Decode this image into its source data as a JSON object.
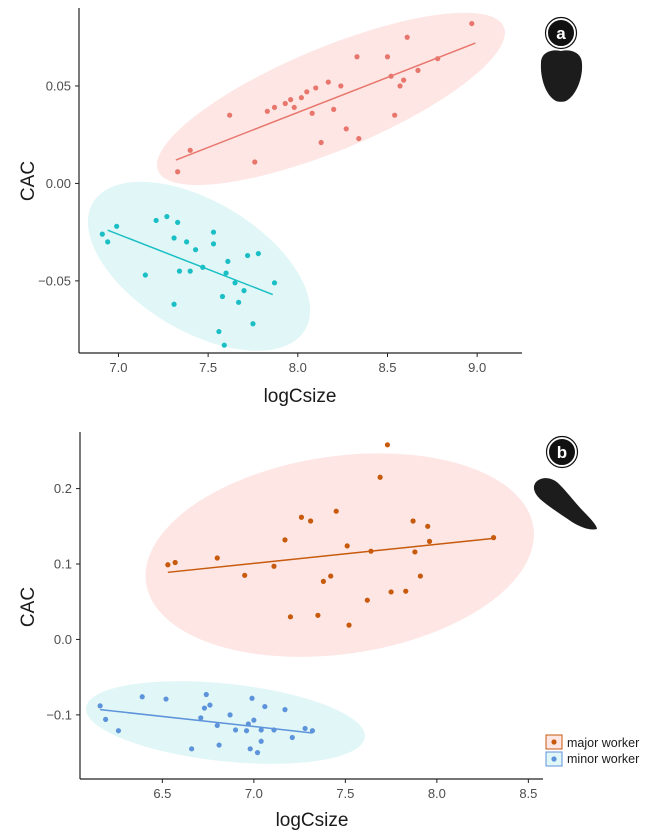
{
  "chart_data": [
    {
      "type": "scatter",
      "panel_label": "a",
      "xlabel": "logCsize",
      "ylabel": "CAC",
      "xlim": [
        6.78,
        9.25
      ],
      "ylim": [
        -0.087,
        0.09
      ],
      "xticks": [
        7.0,
        7.5,
        8.0,
        8.5,
        9.0
      ],
      "xtick_labels": [
        "7.0",
        "7.5",
        "8.0",
        "8.5",
        "9.0"
      ],
      "yticks": [
        0.05,
        0.0,
        -0.05
      ],
      "ytick_labels": [
        "0.05",
        "0.00",
        "−0.05"
      ],
      "series": [
        {
          "key": "major",
          "color": "#e8766d",
          "ellipse_color": "#fde6e4",
          "points": [
            [
              7.33,
              0.006
            ],
            [
              7.4,
              0.017
            ],
            [
              7.62,
              0.035
            ],
            [
              7.76,
              0.011
            ],
            [
              7.83,
              0.037
            ],
            [
              7.87,
              0.039
            ],
            [
              7.93,
              0.041
            ],
            [
              7.96,
              0.043
            ],
            [
              7.98,
              0.039
            ],
            [
              8.02,
              0.044
            ],
            [
              8.05,
              0.047
            ],
            [
              8.08,
              0.036
            ],
            [
              8.1,
              0.049
            ],
            [
              8.13,
              0.021
            ],
            [
              8.17,
              0.052
            ],
            [
              8.2,
              0.038
            ],
            [
              8.24,
              0.05
            ],
            [
              8.27,
              0.028
            ],
            [
              8.33,
              0.065
            ],
            [
              8.34,
              0.023
            ],
            [
              8.5,
              0.065
            ],
            [
              8.52,
              0.055
            ],
            [
              8.54,
              0.035
            ],
            [
              8.57,
              0.05
            ],
            [
              8.59,
              0.053
            ],
            [
              8.61,
              0.075
            ],
            [
              8.67,
              0.058
            ],
            [
              8.78,
              0.064
            ],
            [
              8.97,
              0.082
            ]
          ],
          "fit": [
            [
              7.32,
              0.012
            ],
            [
              8.99,
              0.072
            ]
          ]
        },
        {
          "key": "minor",
          "color": "#19bfc4",
          "ellipse_color": "#e1f6f6",
          "points": [
            [
              6.91,
              -0.026
            ],
            [
              6.94,
              -0.03
            ],
            [
              6.99,
              -0.022
            ],
            [
              7.15,
              -0.047
            ],
            [
              7.21,
              -0.019
            ],
            [
              7.27,
              -0.017
            ],
            [
              7.31,
              -0.028
            ],
            [
              7.31,
              -0.062
            ],
            [
              7.33,
              -0.02
            ],
            [
              7.34,
              -0.045
            ],
            [
              7.38,
              -0.03
            ],
            [
              7.4,
              -0.045
            ],
            [
              7.43,
              -0.034
            ],
            [
              7.47,
              -0.043
            ],
            [
              7.53,
              -0.025
            ],
            [
              7.53,
              -0.031
            ],
            [
              7.56,
              -0.076
            ],
            [
              7.58,
              -0.058
            ],
            [
              7.59,
              -0.083
            ],
            [
              7.6,
              -0.046
            ],
            [
              7.61,
              -0.04
            ],
            [
              7.65,
              -0.051
            ],
            [
              7.67,
              -0.061
            ],
            [
              7.7,
              -0.055
            ],
            [
              7.72,
              -0.037
            ],
            [
              7.75,
              -0.072
            ],
            [
              7.78,
              -0.036
            ],
            [
              7.87,
              -0.051
            ]
          ],
          "fit": [
            [
              6.94,
              -0.024
            ],
            [
              7.86,
              -0.057
            ]
          ]
        }
      ]
    },
    {
      "type": "scatter",
      "panel_label": "b",
      "xlabel": "logCsize",
      "ylabel": "CAC",
      "xlim": [
        6.05,
        8.58
      ],
      "ylim": [
        -0.185,
        0.275
      ],
      "xticks": [
        6.5,
        7.0,
        7.5,
        8.0,
        8.5
      ],
      "xtick_labels": [
        "6.5",
        "7.0",
        "7.5",
        "8.0",
        "8.5"
      ],
      "yticks": [
        0.2,
        0.1,
        0.0,
        -0.1
      ],
      "ytick_labels": [
        "0.2",
        "0.1",
        "0.0",
        "−0.1"
      ],
      "series": [
        {
          "key": "major",
          "name": "major worker",
          "color": "#c75a0c",
          "ellipse_color": "#fde6e4",
          "points": [
            [
              6.53,
              0.099
            ],
            [
              6.57,
              0.102
            ],
            [
              6.8,
              0.108
            ],
            [
              6.95,
              0.085
            ],
            [
              7.11,
              0.097
            ],
            [
              7.17,
              0.132
            ],
            [
              7.2,
              0.03
            ],
            [
              7.26,
              0.162
            ],
            [
              7.31,
              0.157
            ],
            [
              7.35,
              0.032
            ],
            [
              7.38,
              0.077
            ],
            [
              7.42,
              0.084
            ],
            [
              7.45,
              0.17
            ],
            [
              7.51,
              0.124
            ],
            [
              7.52,
              0.019
            ],
            [
              7.62,
              0.052
            ],
            [
              7.64,
              0.117
            ],
            [
              7.69,
              0.215
            ],
            [
              7.73,
              0.258
            ],
            [
              7.75,
              0.063
            ],
            [
              7.83,
              0.064
            ],
            [
              7.87,
              0.157
            ],
            [
              7.88,
              0.116
            ],
            [
              7.91,
              0.084
            ],
            [
              7.95,
              0.15
            ],
            [
              7.96,
              0.13
            ],
            [
              8.31,
              0.135
            ]
          ],
          "fit": [
            [
              6.53,
              0.089
            ],
            [
              8.31,
              0.134
            ]
          ]
        },
        {
          "key": "minor",
          "name": "minor worker",
          "color": "#5d93db",
          "ellipse_color": "#e1f6f6",
          "points": [
            [
              6.16,
              -0.088
            ],
            [
              6.19,
              -0.106
            ],
            [
              6.26,
              -0.121
            ],
            [
              6.39,
              -0.076
            ],
            [
              6.52,
              -0.079
            ],
            [
              6.66,
              -0.145
            ],
            [
              6.71,
              -0.104
            ],
            [
              6.73,
              -0.091
            ],
            [
              6.74,
              -0.073
            ],
            [
              6.76,
              -0.087
            ],
            [
              6.8,
              -0.114
            ],
            [
              6.81,
              -0.14
            ],
            [
              6.87,
              -0.1
            ],
            [
              6.9,
              -0.12
            ],
            [
              6.96,
              -0.121
            ],
            [
              6.97,
              -0.112
            ],
            [
              6.98,
              -0.145
            ],
            [
              6.99,
              -0.078
            ],
            [
              7.0,
              -0.107
            ],
            [
              7.02,
              -0.15
            ],
            [
              7.04,
              -0.12
            ],
            [
              7.04,
              -0.135
            ],
            [
              7.06,
              -0.089
            ],
            [
              7.11,
              -0.12
            ],
            [
              7.17,
              -0.093
            ],
            [
              7.21,
              -0.13
            ],
            [
              7.28,
              -0.118
            ],
            [
              7.32,
              -0.121
            ]
          ],
          "fit": [
            [
              6.16,
              -0.093
            ],
            [
              7.32,
              -0.124
            ]
          ]
        }
      ]
    }
  ]
}
